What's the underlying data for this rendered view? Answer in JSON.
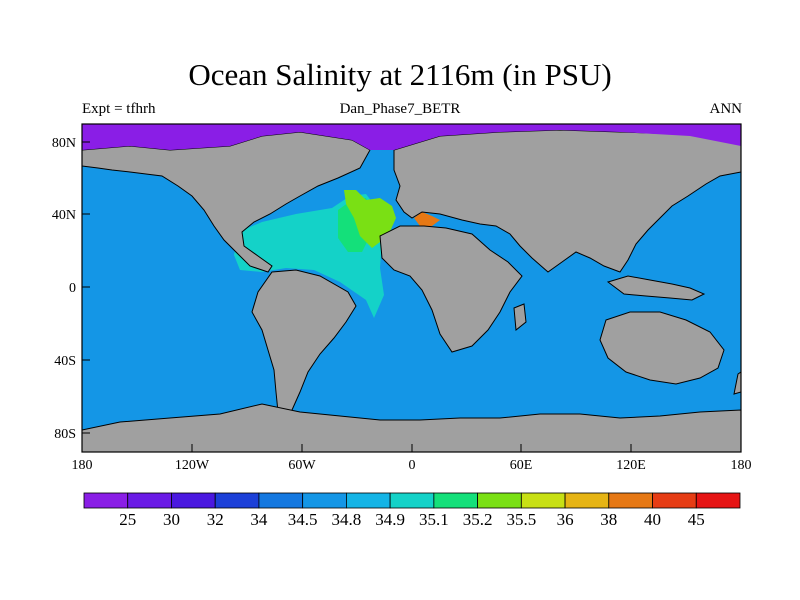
{
  "title": "Ocean Salinity at 2116m (in PSU)",
  "subtitle": "Dan_Phase7_BETR",
  "left_label": "Expt = tfhrh",
  "right_label": "ANN",
  "x_ticks": [
    "180",
    "120W",
    "60W",
    "0",
    "60E",
    "120E",
    "180"
  ],
  "y_ticks": [
    "80N",
    "40N",
    "0",
    "40S",
    "80S"
  ],
  "colorbar": {
    "labels": [
      "25",
      "30",
      "32",
      "34",
      "34.5",
      "34.8",
      "34.9",
      "35.1",
      "35.2",
      "35.5",
      "36",
      "38",
      "40",
      "45"
    ],
    "colors": [
      "#8a1ee6",
      "#6a1ae6",
      "#4a18e0",
      "#1c40d8",
      "#1478e0",
      "#1496e6",
      "#14b4e6",
      "#14d2c8",
      "#14e07a",
      "#7ae014",
      "#c8e014",
      "#e6b414",
      "#e67814",
      "#e63c14",
      "#e61414"
    ]
  },
  "colors": {
    "land": "#a0a0a0",
    "ocean_deep": "#1496e6",
    "atlantic_mid": "#14d2c8",
    "atlantic_high": "#14e07a",
    "atlantic_highest": "#7ae014",
    "mediterranean": "#e67814",
    "arctic": "#8a1ee6"
  }
}
